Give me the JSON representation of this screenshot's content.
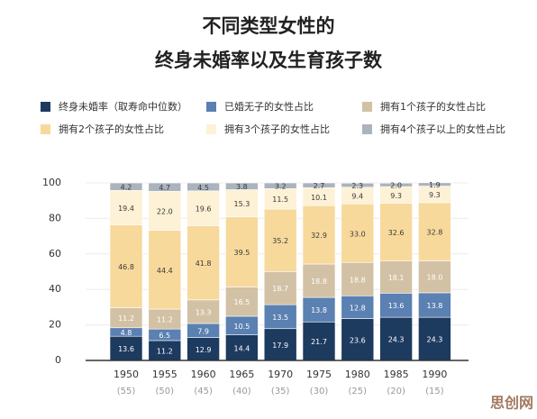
{
  "chart_data": {
    "type": "stacked_bar",
    "title": [
      "不同类型女性的",
      "终身未婚率以及生育孩子数"
    ],
    "categories": [
      "1950",
      "1955",
      "1960",
      "1965",
      "1970",
      "1975",
      "1980",
      "1985",
      "1990"
    ],
    "category_sublabels": [
      "(55)",
      "(50)",
      "(45)",
      "(40)",
      "(35)",
      "(30)",
      "(25)",
      "(20)",
      "(15)"
    ],
    "ylim": [
      0,
      100
    ],
    "yticks": [
      0,
      20,
      40,
      60,
      80,
      100
    ],
    "grid": true,
    "series": [
      {
        "name": "终身未婚率（取寿命中位数）",
        "color": "#1d3a5f",
        "label_color": "#ffffff",
        "values": [
          13.6,
          11.2,
          12.9,
          14.4,
          17.9,
          21.7,
          23.6,
          24.3,
          24.3
        ],
        "value_labels": [
          "13.6",
          "11.2",
          "12.9",
          "14.4",
          "17.9",
          "21.7",
          "23.6",
          "24.3",
          "24.3"
        ]
      },
      {
        "name": "已婚无子的女性占比",
        "color": "#5b80b2",
        "label_color": "#ffffff",
        "values": [
          4.8,
          6.5,
          7.9,
          10.5,
          13.5,
          13.8,
          12.8,
          13.6,
          13.8
        ],
        "value_labels": [
          "4.8",
          "6.5",
          "7.9",
          "10.5",
          "13.5",
          "13.8",
          "12.8",
          "13.6",
          "13.8"
        ]
      },
      {
        "name": "拥有1个孩子的女性占比",
        "color": "#d2c1a4",
        "label_color": "#ffffff",
        "values": [
          11.2,
          11.2,
          13.3,
          16.5,
          18.7,
          18.8,
          18.8,
          18.1,
          18.0
        ],
        "value_labels": [
          "11.2",
          "11.2",
          "13.3",
          "16.5",
          "18.7",
          "18.8",
          "18.8",
          "18.1",
          "18.0"
        ]
      },
      {
        "name": "拥有2个孩子的女性占比",
        "color": "#f8d99c",
        "label_color": "#3a3a3a",
        "values": [
          46.8,
          44.4,
          41.8,
          39.5,
          35.2,
          32.9,
          33.0,
          32.6,
          32.8
        ],
        "value_labels": [
          "46.8",
          "44.4",
          "41.8",
          "39.5",
          "35.2",
          "32.9",
          "33.0",
          "32.6",
          "32.8"
        ]
      },
      {
        "name": "拥有3个孩子的女性占比",
        "color": "#fdf1d6",
        "label_color": "#3a3a3a",
        "values": [
          19.4,
          22.0,
          19.6,
          15.3,
          11.5,
          10.1,
          9.4,
          9.3,
          9.3
        ],
        "value_labels": [
          "19.4",
          "22.0",
          "19.6",
          "15.3",
          "11.5",
          "10.1",
          "9.4",
          "9.3",
          "9.3"
        ]
      },
      {
        "name": "拥有4个孩子以上的女性占比",
        "color": "#abb3be",
        "label_color": "#3a3a3a",
        "values": [
          4.2,
          4.7,
          4.5,
          3.8,
          3.2,
          2.7,
          2.3,
          2.0,
          1.9
        ],
        "value_labels": [
          "4.2",
          "4.7",
          "4.5",
          "3.8",
          "3.2",
          "2.7",
          "2.3",
          "2.0",
          "1.9"
        ]
      }
    ],
    "watermark": "思创网"
  }
}
